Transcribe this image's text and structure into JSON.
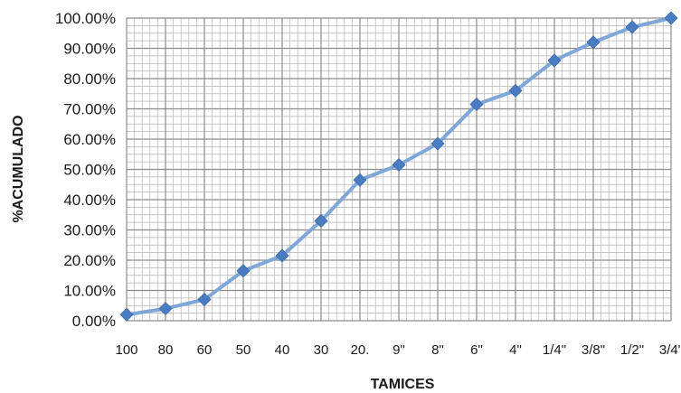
{
  "chart_data": {
    "type": "line",
    "title": "",
    "xlabel": "TAMICES",
    "ylabel": "%ACUMULADO",
    "categories": [
      "100",
      "80",
      "60",
      "50",
      "40",
      "30",
      "20.",
      "9\"",
      "8\"",
      "6\"",
      "4\"",
      "1/4\"",
      "3/8\"",
      "1/2\"",
      "3/4\""
    ],
    "series": [
      {
        "values": [
          2.0,
          4.0,
          7.0,
          16.5,
          21.5,
          33.0,
          46.5,
          51.5,
          58.5,
          71.5,
          76.0,
          86.0,
          92.0,
          97.0,
          100.0
        ]
      }
    ],
    "ylim": [
      0,
      100
    ],
    "yticks": [
      "0.00%",
      "10.00%",
      "20.00%",
      "30.00%",
      "40.00%",
      "50.00%",
      "60.00%",
      "70.00%",
      "80.00%",
      "90.00%",
      "100.00%"
    ],
    "grid": true,
    "minor_grid": true,
    "legend": "none",
    "colors": {
      "line": "#7ea6d8",
      "marker": "#4a7cc2",
      "major_grid": "#8c8c8c",
      "minor_grid": "#b4b4b4"
    }
  }
}
